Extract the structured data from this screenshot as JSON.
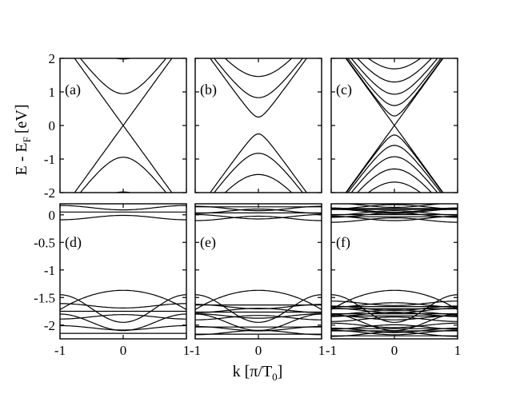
{
  "figure": {
    "ylabel_main": "E - E",
    "ylabel_sub": "F",
    "ylabel_unit": "[eV]",
    "xlabel_main": "k [π/T",
    "xlabel_sub": "0",
    "xlabel_close": "]"
  },
  "chart_data": [
    {
      "panel": "(a)",
      "type": "line",
      "title": "",
      "xlabel": "",
      "ylabel": "",
      "xlim": [
        -1,
        1
      ],
      "ylim": [
        -2,
        2
      ],
      "yticks": [
        "2",
        "1",
        "0",
        "-1",
        "-2"
      ],
      "xticks": [],
      "n_subbands": 5,
      "gap": 0,
      "spacing": 0.9,
      "note": "band structure of a nanotube, linear crossing at E=0, k=0"
    },
    {
      "panel": "(b)",
      "type": "line",
      "title": "",
      "xlabel": "",
      "ylabel": "",
      "xlim": [
        -1,
        1
      ],
      "ylim": [
        -2,
        2
      ],
      "yticks": [],
      "xticks": [],
      "n_subbands": 7,
      "gap": 0.25,
      "spacing": 0.55
    },
    {
      "panel": "(c)",
      "type": "line",
      "title": "",
      "xlabel": "",
      "ylabel": "",
      "xlim": [
        -1,
        1
      ],
      "ylim": [
        -2,
        2
      ],
      "yticks": [],
      "xticks": [],
      "n_subbands": 14,
      "gap": 0,
      "spacing": 0.27
    },
    {
      "panel": "(d)",
      "type": "line",
      "title": "",
      "xlabel": "",
      "ylabel": "",
      "xlim": [
        -1,
        1
      ],
      "ylim": [
        -2.25,
        0.2
      ],
      "yticks": [
        "0",
        "-0.5",
        "-1",
        "-1.5",
        "-2"
      ],
      "xticks": [
        "-1",
        "0",
        "1"
      ],
      "n_flat_bands": 6,
      "density": 1
    },
    {
      "panel": "(e)",
      "type": "line",
      "title": "",
      "xlabel": "",
      "ylabel": "",
      "xlim": [
        -1,
        1
      ],
      "ylim": [
        -2.25,
        0.2
      ],
      "yticks": [],
      "xticks": [
        "-1",
        "0",
        "1"
      ],
      "n_flat_bands": 12,
      "density": 2
    },
    {
      "panel": "(f)",
      "type": "line",
      "title": "",
      "xlabel": "",
      "ylabel": "",
      "xlim": [
        -1,
        1
      ],
      "ylim": [
        -2.25,
        0.2
      ],
      "yticks": [],
      "xticks": [
        "-1",
        "0",
        "1"
      ],
      "n_flat_bands": 24,
      "density": 4
    }
  ]
}
